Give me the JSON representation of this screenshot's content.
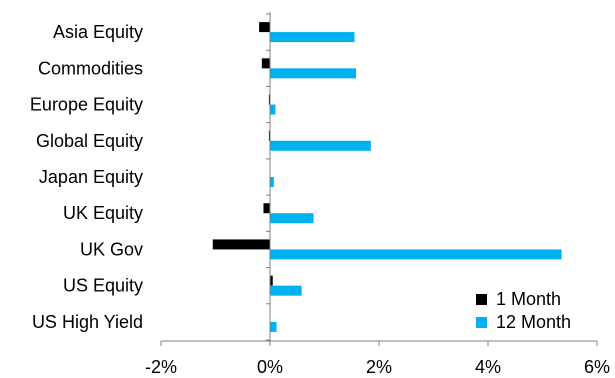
{
  "chart_data": {
    "type": "bar",
    "orientation": "horizontal",
    "categories": [
      "Asia Equity",
      "Commodities",
      "Europe Equity",
      "Global Equity",
      "Japan Equity",
      "UK Equity",
      "UK Gov",
      "US Equity",
      "US High Yield"
    ],
    "series": [
      {
        "name": "1 Month",
        "color": "#000000",
        "values": [
          -0.2,
          -0.15,
          -0.02,
          -0.02,
          0.0,
          -0.12,
          -1.05,
          0.05,
          0.0
        ]
      },
      {
        "name": "12 Month",
        "color": "#00B0F0",
        "values": [
          1.55,
          1.58,
          0.1,
          1.85,
          0.07,
          0.8,
          5.35,
          0.58,
          0.12
        ]
      }
    ],
    "xlim": [
      -2,
      6
    ],
    "xticks": [
      -2,
      0,
      2,
      4,
      6
    ],
    "xtick_labels": [
      "-2%",
      "0%",
      "2%",
      "4%",
      "6%"
    ],
    "title": "",
    "xlabel": "",
    "ylabel": "",
    "grid": false,
    "legend_position": "bottom-right"
  }
}
